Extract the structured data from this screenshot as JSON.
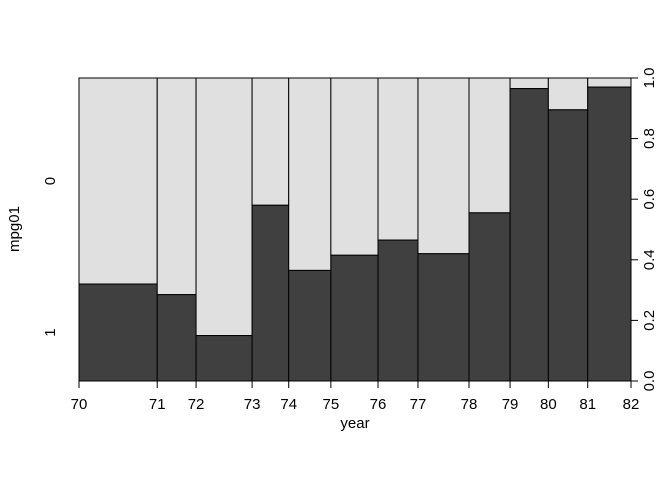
{
  "chart_data": {
    "type": "spineplot",
    "xlabel": "year",
    "ylabel": "mpg01",
    "x_breaks": [
      70,
      71,
      72,
      73,
      74,
      75,
      76,
      77,
      78,
      79,
      80,
      81,
      82
    ],
    "x_tick_labels": [
      "70",
      "71",
      "72",
      "73",
      "74",
      "75",
      "76",
      "77",
      "78",
      "79",
      "80",
      "81",
      "82"
    ],
    "categories": [
      "70-71",
      "71-72",
      "72-73",
      "73-74",
      "74-75",
      "75-76",
      "76-77",
      "77-78",
      "78-79",
      "79-80",
      "80-81",
      "81-82"
    ],
    "bin_width_fraction": [
      0.141,
      0.07,
      0.101,
      0.066,
      0.076,
      0.085,
      0.072,
      0.092,
      0.074,
      0.069,
      0.071,
      0.078
    ],
    "series": [
      {
        "name": "1",
        "color": "#404040",
        "values": [
          0.32,
          0.285,
          0.15,
          0.58,
          0.365,
          0.415,
          0.465,
          0.42,
          0.555,
          0.965,
          0.895,
          0.97
        ]
      },
      {
        "name": "0",
        "color": "#e0e0e0",
        "values": [
          0.68,
          0.715,
          0.85,
          0.42,
          0.635,
          0.585,
          0.535,
          0.58,
          0.445,
          0.035,
          0.105,
          0.03
        ]
      }
    ],
    "y_left_tick_labels": [
      "0",
      "1"
    ],
    "y_right_ticks": [
      0.0,
      0.2,
      0.4,
      0.6,
      0.8,
      1.0
    ],
    "y_right_tick_labels": [
      "0.0",
      "0.2",
      "0.4",
      "0.6",
      "0.8",
      "1.0"
    ],
    "ylim": [
      0,
      1
    ]
  }
}
